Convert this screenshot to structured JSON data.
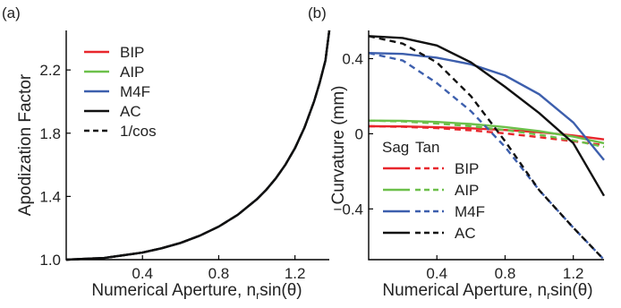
{
  "chart_data": [
    {
      "panel_label": "(a)",
      "type": "line",
      "xlabel": "Numerical Aperture, n",
      "xlabel_sub": "r",
      "xlabel_tail": "sin(θ)",
      "ylabel": "Apodization Factor",
      "xlim": [
        0.0,
        1.38
      ],
      "ylim": [
        1.0,
        2.45
      ],
      "xticks": [
        0.4,
        0.8,
        1.2
      ],
      "xtick_labels": [
        "0.4",
        "0.8",
        "1.2"
      ],
      "yticks": [
        1.0,
        1.4,
        1.8,
        2.2
      ],
      "ytick_labels": [
        "1.0",
        "1.4",
        "1.8",
        "2.2"
      ],
      "x": [
        0.0,
        0.2,
        0.4,
        0.5,
        0.6,
        0.7,
        0.8,
        0.9,
        1.0,
        1.05,
        1.1,
        1.15,
        1.2,
        1.25,
        1.3,
        1.33,
        1.36,
        1.38
      ],
      "series": [
        {
          "name": "BIP",
          "color": "#e8262c",
          "dash": "solid",
          "values": [
            1.0,
            1.011,
            1.045,
            1.072,
            1.106,
            1.151,
            1.209,
            1.284,
            1.382,
            1.443,
            1.515,
            1.601,
            1.706,
            1.836,
            2.001,
            2.12,
            2.26,
            2.45
          ]
        },
        {
          "name": "AIP",
          "color": "#6cc04a",
          "dash": "solid",
          "values": [
            1.0,
            1.011,
            1.045,
            1.072,
            1.106,
            1.151,
            1.209,
            1.284,
            1.382,
            1.443,
            1.515,
            1.601,
            1.706,
            1.836,
            2.001,
            2.12,
            2.26,
            2.45
          ]
        },
        {
          "name": "M4F",
          "color": "#3d5fad",
          "dash": "solid",
          "values": [
            1.0,
            1.011,
            1.045,
            1.072,
            1.106,
            1.151,
            1.209,
            1.284,
            1.382,
            1.443,
            1.515,
            1.601,
            1.706,
            1.836,
            2.001,
            2.12,
            2.26,
            2.45
          ]
        },
        {
          "name": "AC",
          "color": "#111111",
          "dash": "solid",
          "values": [
            1.0,
            1.011,
            1.045,
            1.072,
            1.106,
            1.151,
            1.209,
            1.284,
            1.382,
            1.443,
            1.515,
            1.601,
            1.706,
            1.836,
            2.001,
            2.12,
            2.26,
            2.45
          ]
        },
        {
          "name": "1/cos",
          "color": "#111111",
          "dash": "dashed",
          "values": [
            1.0,
            1.011,
            1.045,
            1.072,
            1.106,
            1.151,
            1.209,
            1.284,
            1.382,
            1.443,
            1.515,
            1.601,
            1.706,
            1.836,
            2.001,
            2.12,
            2.26,
            2.45
          ]
        }
      ],
      "legend_placement": "top-left"
    },
    {
      "panel_label": "(b)",
      "type": "line",
      "xlabel": "Numerical Aperture, n",
      "xlabel_sub": "r",
      "xlabel_tail": "sin(θ)",
      "ylabel": "Curvature (mm)",
      "xlim": [
        0.0,
        1.38
      ],
      "ylim": [
        -0.67,
        0.55
      ],
      "xticks": [
        0.4,
        0.8,
        1.2
      ],
      "xtick_labels": [
        "0.4",
        "0.8",
        "1.2"
      ],
      "yticks": [
        -0.4,
        0.0,
        0.4
      ],
      "ytick_labels": [
        "−0.4",
        "0",
        "0.4"
      ],
      "x": [
        0.0,
        0.2,
        0.4,
        0.6,
        0.8,
        1.0,
        1.2,
        1.38
      ],
      "legend_header": [
        "Sag",
        "Tan"
      ],
      "legend_placement": "bottom-left",
      "series": [
        {
          "name": "BIP",
          "kind": "Sag",
          "color": "#e8262c",
          "dash": "solid",
          "values": [
            0.04,
            0.039,
            0.035,
            0.029,
            0.02,
            0.008,
            -0.009,
            -0.03
          ]
        },
        {
          "name": "BIP",
          "kind": "Tan",
          "color": "#e8262c",
          "dash": "dashed",
          "values": [
            0.04,
            0.037,
            0.03,
            0.018,
            0.002,
            -0.018,
            -0.04,
            -0.06
          ]
        },
        {
          "name": "AIP",
          "kind": "Sag",
          "color": "#6cc04a",
          "dash": "solid",
          "values": [
            0.07,
            0.069,
            0.063,
            0.052,
            0.036,
            0.014,
            -0.015,
            -0.05
          ]
        },
        {
          "name": "AIP",
          "kind": "Tan",
          "color": "#6cc04a",
          "dash": "dashed",
          "values": [
            0.07,
            0.066,
            0.055,
            0.04,
            0.02,
            -0.005,
            -0.035,
            -0.07
          ]
        },
        {
          "name": "M4F",
          "kind": "Sag",
          "color": "#3d5fad",
          "dash": "solid",
          "values": [
            0.43,
            0.425,
            0.405,
            0.37,
            0.31,
            0.21,
            0.06,
            -0.14
          ]
        },
        {
          "name": "M4F",
          "kind": "Tan",
          "color": "#3d5fad",
          "dash": "dashed",
          "values": [
            0.43,
            0.39,
            0.27,
            0.12,
            -0.07,
            -0.3,
            -0.5,
            -0.67
          ]
        },
        {
          "name": "AC",
          "kind": "Sag",
          "color": "#111111",
          "dash": "solid",
          "values": [
            0.52,
            0.51,
            0.47,
            0.38,
            0.25,
            0.11,
            -0.05,
            -0.33
          ]
        },
        {
          "name": "AC",
          "kind": "Tan",
          "color": "#111111",
          "dash": "dashed",
          "values": [
            0.52,
            0.48,
            0.38,
            0.2,
            -0.04,
            -0.3,
            -0.5,
            -0.67
          ]
        }
      ]
    }
  ]
}
